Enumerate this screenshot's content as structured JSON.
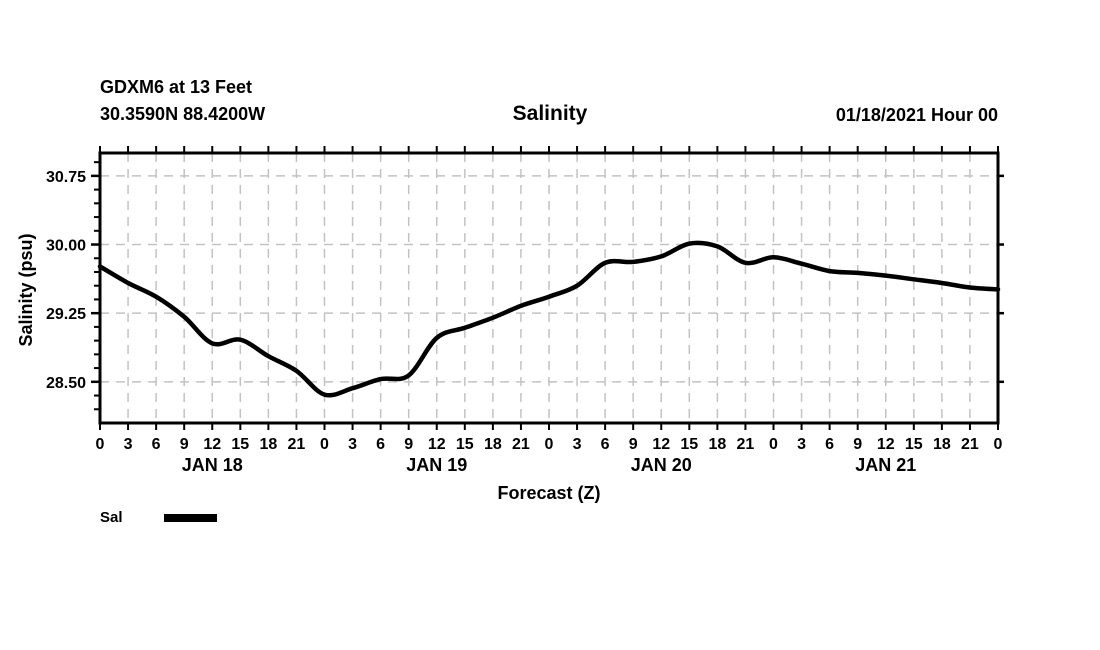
{
  "header": {
    "station_line1": "GDXM6 at 13 Feet",
    "station_line2": "30.3590N 88.4200W",
    "title": "Salinity",
    "datetime": "01/18/2021 Hour 00"
  },
  "axes": {
    "y_title": "Salinity (psu)",
    "x_title": "Forecast (Z)",
    "y_major_ticks": [
      30.75,
      30.0,
      29.25,
      28.5
    ],
    "y_major_labels": [
      "30.75",
      "30.00",
      "29.25",
      "28.50"
    ],
    "y_minor_step": 0.15,
    "y_range": [
      28.05,
      31.0
    ],
    "x_range_hours": [
      0,
      96
    ],
    "x_tick_step_hours": 3,
    "x_hour_labels": [
      "0",
      "3",
      "6",
      "9",
      "12",
      "15",
      "18",
      "21"
    ],
    "day_labels": [
      "JAN 18",
      "JAN 19",
      "JAN 20",
      "JAN 21"
    ]
  },
  "legend": {
    "label": "Sal",
    "color": "#000000"
  },
  "colors": {
    "line": "#000000",
    "grid": "#c2c2c2",
    "axis": "#000000",
    "background": "#ffffff"
  },
  "chart_data": {
    "type": "line",
    "title": "Salinity",
    "xlabel": "Forecast (Z)",
    "ylabel": "Salinity (psu)",
    "ylim": [
      28.05,
      31.0
    ],
    "xlim_hours": [
      0,
      96
    ],
    "x_day_labels": [
      "JAN 18",
      "JAN 19",
      "JAN 20",
      "JAN 21"
    ],
    "grid": "dashed, vertical every 3 hours, horizontal at major y ticks",
    "legend_position": "below-left",
    "series": [
      {
        "name": "Sal",
        "color": "#000000",
        "x_hours": [
          0,
          3,
          6,
          9,
          12,
          15,
          18,
          21,
          24,
          27,
          30,
          33,
          36,
          39,
          42,
          45,
          48,
          51,
          54,
          57,
          60,
          63,
          66,
          69,
          72,
          75,
          78,
          81,
          84,
          87,
          90,
          93,
          96
        ],
        "values": [
          29.76,
          29.58,
          29.43,
          29.21,
          28.92,
          28.96,
          28.78,
          28.62,
          28.36,
          28.43,
          28.53,
          28.57,
          28.98,
          29.09,
          29.2,
          29.33,
          29.43,
          29.55,
          29.8,
          29.81,
          29.87,
          30.01,
          29.98,
          29.8,
          29.86,
          29.79,
          29.71,
          29.69,
          29.66,
          29.62,
          29.58,
          29.53,
          29.51
        ]
      }
    ]
  }
}
